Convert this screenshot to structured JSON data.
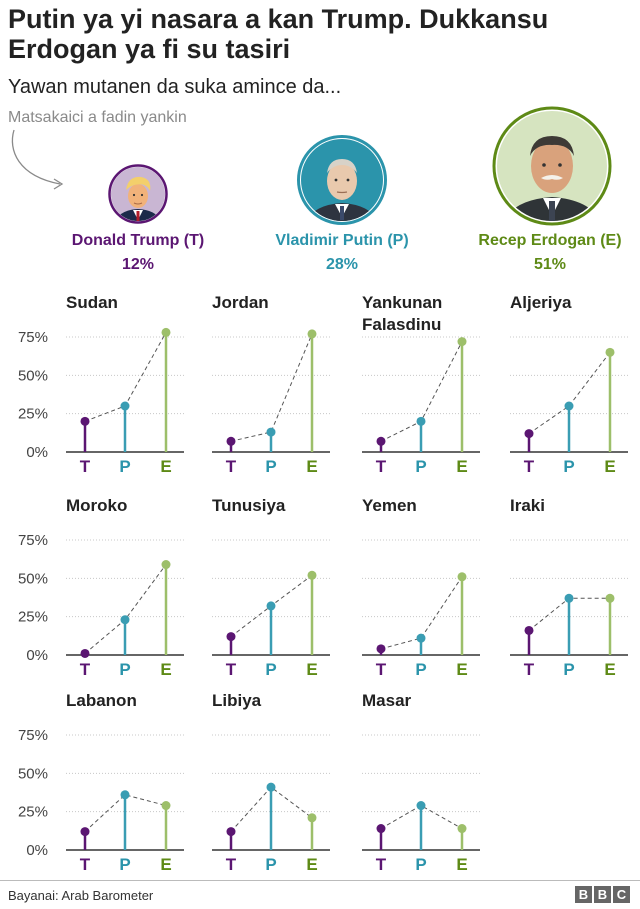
{
  "title": "Putin ya yi nasara a kan Trump. Dukkansu Erdogan ya fi su tasiri",
  "subtitle": "Yawan mutanen da suka amince da...",
  "size_note": "Matsakaici a fadin yankin",
  "colors": {
    "trump": "#5b1672",
    "putin": "#2b94ab",
    "erdogan": "#5e8a16",
    "trump_mark": "#5b1672",
    "putin_mark": "#3a9db3",
    "erdogan_mark": "#9dbf6a"
  },
  "candidates": [
    {
      "name": "Donald Trump (T)",
      "pct": "12%",
      "key": "trump"
    },
    {
      "name": "Vladimir Putin (P)",
      "pct": "28%",
      "key": "putin"
    },
    {
      "name": "Recep Erdogan (E)",
      "pct": "51%",
      "key": "erdogan"
    }
  ],
  "source": "Bayanai: Arab Barometer",
  "logo_letters": [
    "B",
    "B",
    "C"
  ],
  "chart_data": {
    "type": "line",
    "categories": [
      "T",
      "P",
      "E"
    ],
    "ylim": [
      0,
      75
    ],
    "yticks": [
      0,
      25,
      50,
      75
    ],
    "ytick_labels": [
      "0%",
      "25%",
      "50%",
      "75%"
    ],
    "panels": [
      {
        "name": "Sudan",
        "values": [
          20,
          30,
          78
        ]
      },
      {
        "name": "Jordan",
        "values": [
          7,
          13,
          77
        ]
      },
      {
        "name": "Yankunan Falasdinu",
        "values": [
          7,
          20,
          72
        ]
      },
      {
        "name": "Aljeriya",
        "values": [
          12,
          30,
          65
        ]
      },
      {
        "name": "Moroko",
        "values": [
          1,
          23,
          59
        ]
      },
      {
        "name": "Tunusiya",
        "values": [
          12,
          32,
          52
        ]
      },
      {
        "name": "Yemen",
        "values": [
          4,
          11,
          51
        ]
      },
      {
        "name": "Iraki",
        "values": [
          16,
          37,
          37
        ]
      },
      {
        "name": "Labanon",
        "values": [
          12,
          36,
          29
        ]
      },
      {
        "name": "Libiya",
        "values": [
          12,
          41,
          21
        ]
      },
      {
        "name": "Masar",
        "values": [
          14,
          29,
          14
        ]
      }
    ]
  }
}
